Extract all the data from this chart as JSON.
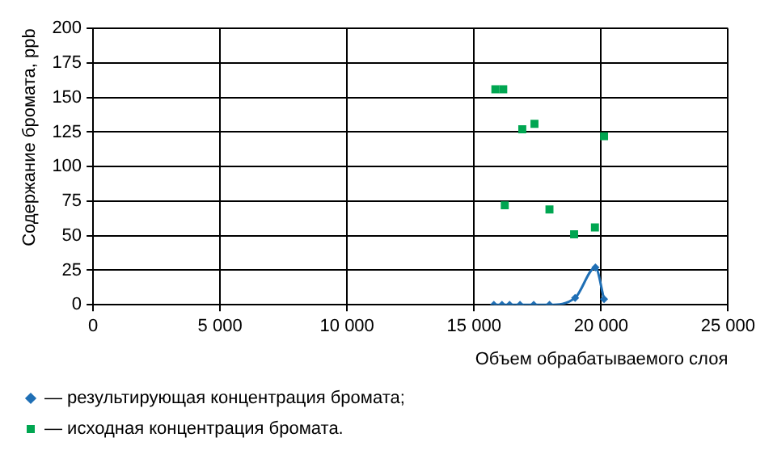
{
  "chart_data": {
    "type": "scatter",
    "xlabel": "Объем обрабатываемого слоя",
    "ylabel": "Содержание бромата, ppb",
    "xlim": [
      0,
      25000
    ],
    "xticks": [
      0,
      {
        "value": 5000,
        "label": "5 000"
      },
      {
        "value": 10000,
        "label": "10 000"
      },
      {
        "value": 15000,
        "label": "15 000"
      },
      {
        "value": 20000,
        "label": "20 000"
      },
      {
        "value": 25000,
        "label": "25 000"
      }
    ],
    "ylim": [
      0,
      200
    ],
    "yticks": [
      0,
      25,
      50,
      75,
      100,
      125,
      150,
      175,
      200
    ],
    "grid": true,
    "legend": "bottom",
    "series": [
      {
        "name": "— результирующая концентрация бромата;",
        "type": "line",
        "marker": "diamond",
        "color": "#1f6fb5",
        "x": [
          15780,
          16100,
          16400,
          16810,
          17350,
          17970,
          18980,
          19780,
          20120
        ],
        "values": [
          0,
          0,
          0,
          0,
          0,
          0,
          5,
          27,
          4
        ]
      },
      {
        "name": "— исходная концентрация бромата.",
        "type": "scatter",
        "marker": "square",
        "color": "#00a651",
        "x": [
          15840,
          16150,
          16900,
          17380,
          20120,
          16210,
          17970,
          18940,
          19760
        ],
        "values": [
          156,
          156,
          127,
          131,
          122,
          72,
          69,
          51,
          56
        ]
      }
    ]
  }
}
